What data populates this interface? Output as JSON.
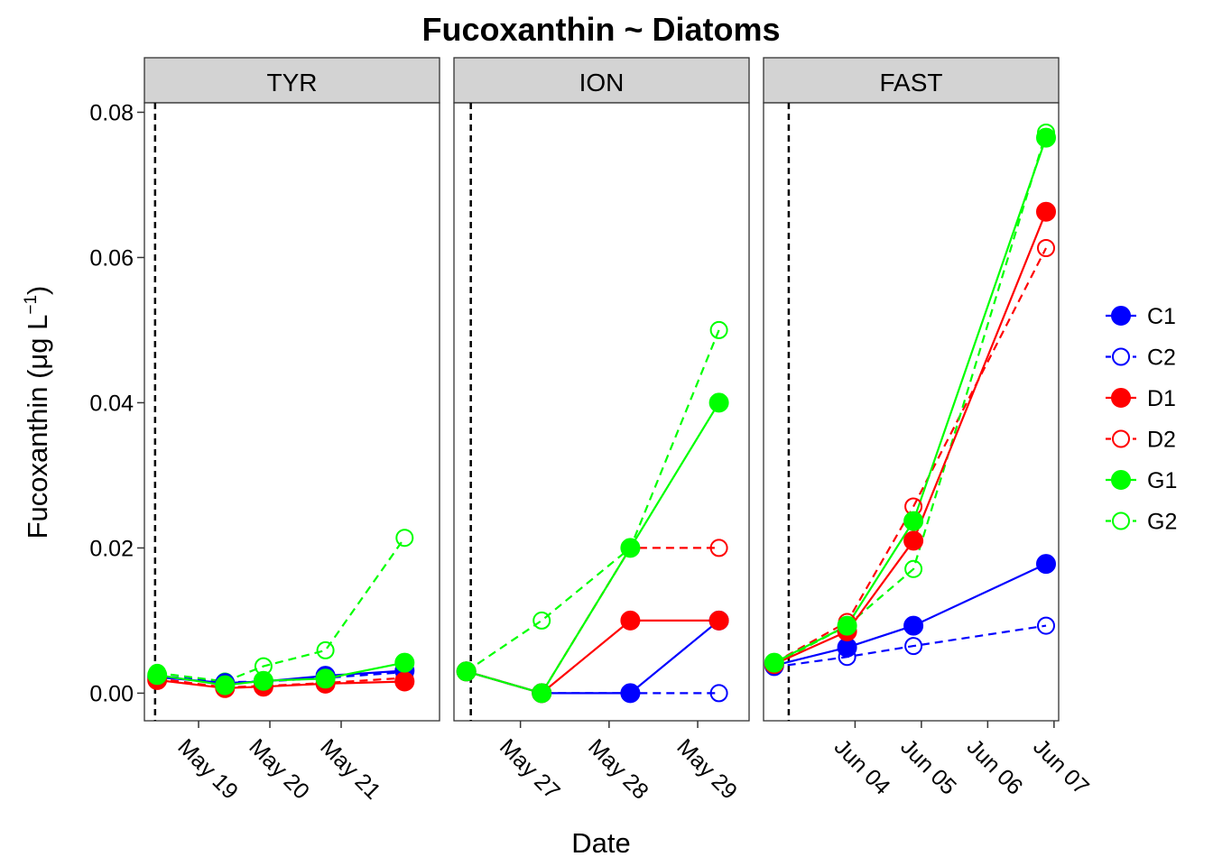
{
  "chart_data": {
    "type": "line",
    "title": "Fucoxanthin ~ Diatoms",
    "xlabel": "Date",
    "ylabel": "Fucoxanthin (μg L⁻¹)",
    "ylabel_parts": {
      "main": "Fucoxanthin (",
      "unit": "μg L",
      "sup": "−1",
      "close": ")"
    },
    "ylim": [
      -0.0038,
      0.0813
    ],
    "yticks": [
      0.0,
      0.02,
      0.04,
      0.06,
      0.08
    ],
    "ytick_labels": [
      "0.00",
      "0.02",
      "0.04",
      "0.06",
      "0.08"
    ],
    "legend": {
      "position": "right",
      "entries": [
        {
          "name": "C1",
          "color": "#0000ff",
          "filled": true,
          "dashed": false
        },
        {
          "name": "C2",
          "color": "#0000ff",
          "filled": false,
          "dashed": true
        },
        {
          "name": "D1",
          "color": "#ff0000",
          "filled": true,
          "dashed": false
        },
        {
          "name": "D2",
          "color": "#ff0000",
          "filled": false,
          "dashed": true
        },
        {
          "name": "G1",
          "color": "#00ff00",
          "filled": true,
          "dashed": false
        },
        {
          "name": "G2",
          "color": "#00ff00",
          "filled": false,
          "dashed": true
        }
      ]
    },
    "panels": [
      {
        "label": "TYR",
        "xlim": [
          17.24,
          21.38
        ],
        "vline": 17.39,
        "xticks": [
          {
            "x": 18.0,
            "label": "May 19"
          },
          {
            "x": 19.0,
            "label": "May 20"
          },
          {
            "x": 20.0,
            "label": "May 21"
          }
        ],
        "x": [
          17.42,
          18.37,
          18.91,
          19.78,
          20.89
        ],
        "series": [
          {
            "name": "C1",
            "values": [
              0.0022,
              0.0014,
              0.0016,
              0.0024,
              0.0031
            ]
          },
          {
            "name": "C2",
            "values": [
              0.0024,
              0.0015,
              0.0016,
              0.0021,
              0.0029
            ]
          },
          {
            "name": "D1",
            "values": [
              0.0018,
              0.0007,
              0.0009,
              0.0013,
              0.0016
            ]
          },
          {
            "name": "D2",
            "values": [
              0.002,
              0.0008,
              0.001,
              0.0014,
              0.0021
            ]
          },
          {
            "name": "G1",
            "values": [
              0.0025,
              0.0011,
              0.0017,
              0.002,
              0.0042
            ]
          },
          {
            "name": "G2",
            "values": [
              0.0028,
              0.0016,
              0.0037,
              0.0059,
              0.0214
            ]
          }
        ]
      },
      {
        "label": "ION",
        "xlim": [
          26.21,
          29.54
        ],
        "vline": 26.4,
        "xticks": [
          {
            "x": 26.96,
            "label": "May 27"
          },
          {
            "x": 27.96,
            "label": "May 28"
          },
          {
            "x": 28.96,
            "label": "May 29"
          }
        ],
        "x": [
          26.35,
          27.2,
          28.2,
          29.2
        ],
        "series": [
          {
            "name": "C1",
            "values": [
              0.003,
              0.0,
              0.0,
              0.01
            ]
          },
          {
            "name": "C2",
            "values": [
              0.003,
              0.0,
              0.0,
              0.0
            ]
          },
          {
            "name": "D1",
            "values": [
              0.003,
              0.0,
              0.01,
              0.01
            ]
          },
          {
            "name": "D2",
            "values": [
              0.003,
              0.0,
              0.02,
              0.02
            ]
          },
          {
            "name": "G1",
            "values": [
              0.003,
              0.0,
              0.02,
              0.04
            ]
          },
          {
            "name": "G2",
            "values": [
              0.003,
              0.01,
              0.02,
              0.05
            ]
          }
        ]
      },
      {
        "label": "FAST",
        "xlim": [
          2.62,
          7.07
        ],
        "vline": 3.0,
        "xticks": [
          {
            "x": 4.0,
            "label": "Jun 04"
          },
          {
            "x": 5.0,
            "label": "Jun 05"
          },
          {
            "x": 6.0,
            "label": "Jun 06"
          },
          {
            "x": 7.0,
            "label": "Jun 07"
          }
        ],
        "x": [
          2.78,
          3.88,
          4.88,
          6.88
        ],
        "series": [
          {
            "name": "C1",
            "values": [
              0.0038,
              0.0063,
              0.0093,
              0.0178
            ]
          },
          {
            "name": "C2",
            "values": [
              0.0036,
              0.005,
              0.0065,
              0.0093
            ]
          },
          {
            "name": "D1",
            "values": [
              0.004,
              0.0085,
              0.021,
              0.0663
            ]
          },
          {
            "name": "D2",
            "values": [
              0.0042,
              0.0098,
              0.0257,
              0.0613
            ]
          },
          {
            "name": "G1",
            "values": [
              0.0042,
              0.0093,
              0.0237,
              0.0765
            ]
          },
          {
            "name": "G2",
            "values": [
              0.004,
              0.0093,
              0.0171,
              0.0772
            ]
          }
        ]
      }
    ]
  }
}
